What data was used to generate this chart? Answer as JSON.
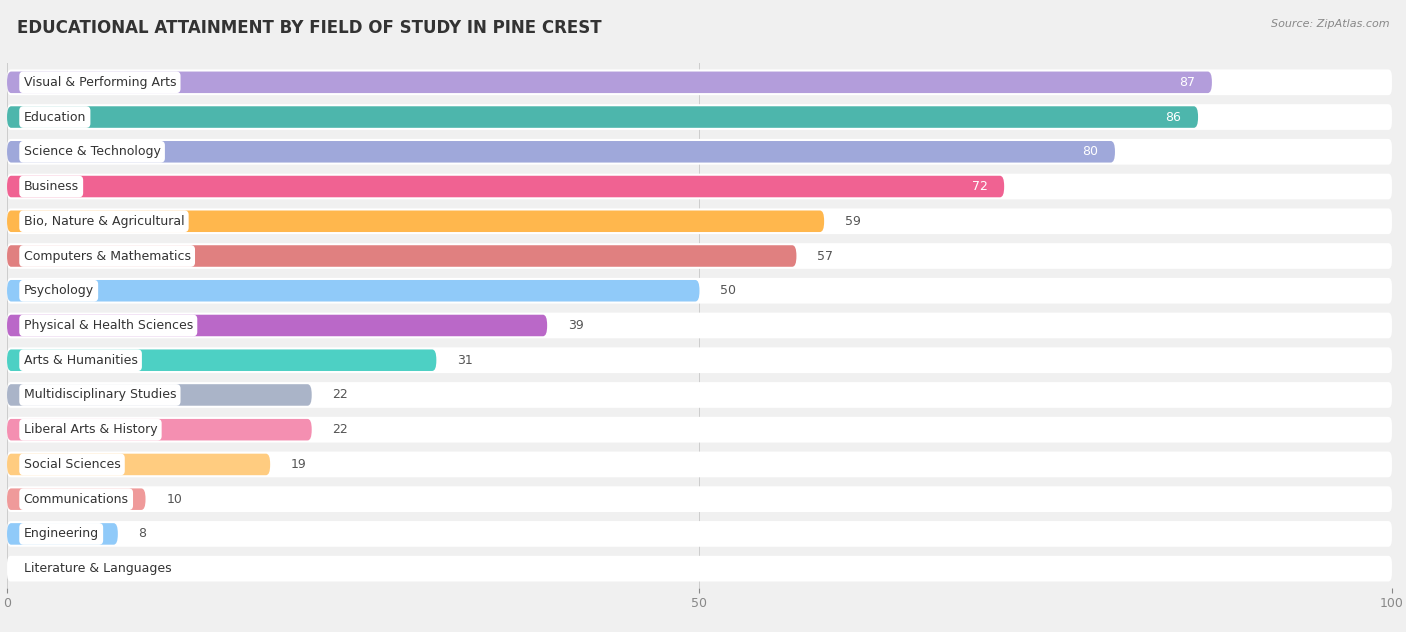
{
  "title": "EDUCATIONAL ATTAINMENT BY FIELD OF STUDY IN PINE CREST",
  "source": "Source: ZipAtlas.com",
  "categories": [
    "Visual & Performing Arts",
    "Education",
    "Science & Technology",
    "Business",
    "Bio, Nature & Agricultural",
    "Computers & Mathematics",
    "Psychology",
    "Physical & Health Sciences",
    "Arts & Humanities",
    "Multidisciplinary Studies",
    "Liberal Arts & History",
    "Social Sciences",
    "Communications",
    "Engineering",
    "Literature & Languages"
  ],
  "values": [
    87,
    86,
    80,
    72,
    59,
    57,
    50,
    39,
    31,
    22,
    22,
    19,
    10,
    8,
    0
  ],
  "bar_colors": [
    "#b39ddb",
    "#4db6ac",
    "#9fa8da",
    "#f06292",
    "#ffb74d",
    "#e08080",
    "#90caf9",
    "#ba68c8",
    "#4dd0c4",
    "#aab4c8",
    "#f48fb1",
    "#ffcc80",
    "#ef9a9a",
    "#90caf9",
    "#c9b8d8"
  ],
  "xlim": [
    0,
    100
  ],
  "background_color": "#f0f0f0",
  "row_background": "#ffffff",
  "title_fontsize": 12,
  "label_fontsize": 9,
  "value_fontsize": 9,
  "inside_label_threshold": 60
}
